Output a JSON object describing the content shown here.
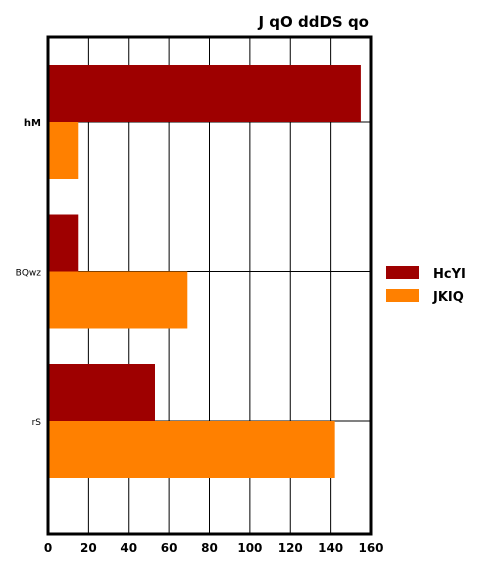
{
  "chart_data": {
    "type": "bar",
    "orientation": "horizontal",
    "title": "J qO ddDS qo",
    "categories": [
      "hM",
      "BQwz",
      "rS"
    ],
    "series": [
      {
        "name": "HcYI",
        "color": "#9e0000",
        "values": [
          155,
          15,
          53
        ]
      },
      {
        "name": "JKIQ",
        "color": "#ff8000",
        "values": [
          15,
          69,
          142
        ]
      }
    ],
    "xlim": [
      0,
      160
    ],
    "xticks": [
      0,
      20,
      40,
      60,
      80,
      100,
      120,
      140,
      160
    ],
    "grid": true,
    "legend_position": "right"
  }
}
